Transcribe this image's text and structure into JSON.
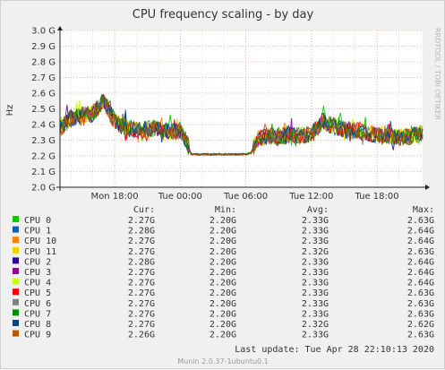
{
  "chart_data": {
    "type": "line",
    "title": "CPU frequency scaling - by day",
    "ylabel": "Hz",
    "side_text": "RRDTOOL / TOBI OETIKER",
    "y_ticks": [
      "2.0 G",
      "2.1 G",
      "2.2 G",
      "2.3 G",
      "2.4 G",
      "2.5 G",
      "2.6 G",
      "2.7 G",
      "2.8 G",
      "2.9 G",
      "3.0 G"
    ],
    "ylim": [
      2.0,
      3.0
    ],
    "x_ticks": [
      "Mon 18:00",
      "Tue 00:00",
      "Tue 06:00",
      "Tue 12:00",
      "Tue 18:00"
    ],
    "grid": true,
    "profile_hours_from_mon_13": [
      0,
      1,
      2,
      3,
      4,
      5,
      6,
      7,
      8,
      9,
      10,
      11,
      11.5,
      12,
      17,
      17.5,
      18,
      19,
      20,
      21,
      22,
      23,
      24,
      25,
      26,
      27,
      28,
      29,
      30,
      31,
      32,
      33
    ],
    "profile_values": [
      2.38,
      2.44,
      2.46,
      2.47,
      2.55,
      2.42,
      2.38,
      2.36,
      2.37,
      2.38,
      2.35,
      2.36,
      2.3,
      2.21,
      2.21,
      2.22,
      2.3,
      2.33,
      2.32,
      2.33,
      2.33,
      2.34,
      2.42,
      2.39,
      2.37,
      2.36,
      2.35,
      2.33,
      2.33,
      2.32,
      2.32,
      2.34
    ],
    "legend_headers": {
      "cur": "Cur:",
      "min": "Min:",
      "avg": "Avg:",
      "max": "Max:"
    },
    "series": [
      {
        "name": "CPU 0",
        "color": "#00cc00",
        "cur": "2.27G",
        "min": "2.20G",
        "avg": "2.33G",
        "max": "2.63G"
      },
      {
        "name": "CPU 1",
        "color": "#0066b3",
        "cur": "2.28G",
        "min": "2.20G",
        "avg": "2.33G",
        "max": "2.64G"
      },
      {
        "name": "CPU 10",
        "color": "#ff8000",
        "cur": "2.27G",
        "min": "2.20G",
        "avg": "2.33G",
        "max": "2.64G"
      },
      {
        "name": "CPU 11",
        "color": "#ffcc00",
        "cur": "2.27G",
        "min": "2.20G",
        "avg": "2.32G",
        "max": "2.63G"
      },
      {
        "name": "CPU 2",
        "color": "#330099",
        "cur": "2.28G",
        "min": "2.20G",
        "avg": "2.33G",
        "max": "2.64G"
      },
      {
        "name": "CPU 3",
        "color": "#990099",
        "cur": "2.27G",
        "min": "2.20G",
        "avg": "2.33G",
        "max": "2.64G"
      },
      {
        "name": "CPU 4",
        "color": "#ccff00",
        "cur": "2.27G",
        "min": "2.20G",
        "avg": "2.33G",
        "max": "2.64G"
      },
      {
        "name": "CPU 5",
        "color": "#ff0000",
        "cur": "2.27G",
        "min": "2.20G",
        "avg": "2.33G",
        "max": "2.63G"
      },
      {
        "name": "CPU 6",
        "color": "#808080",
        "cur": "2.27G",
        "min": "2.20G",
        "avg": "2.33G",
        "max": "2.63G"
      },
      {
        "name": "CPU 7",
        "color": "#008f00",
        "cur": "2.27G",
        "min": "2.20G",
        "avg": "2.33G",
        "max": "2.63G"
      },
      {
        "name": "CPU 8",
        "color": "#00487d",
        "cur": "2.27G",
        "min": "2.20G",
        "avg": "2.32G",
        "max": "2.62G"
      },
      {
        "name": "CPU 9",
        "color": "#b35a00",
        "cur": "2.26G",
        "min": "2.20G",
        "avg": "2.33G",
        "max": "2.63G"
      }
    ],
    "last_update": "Last update: Tue Apr 28 22:10:13 2020",
    "footer": "Munin 2.0.37-1ubuntu0.1"
  }
}
